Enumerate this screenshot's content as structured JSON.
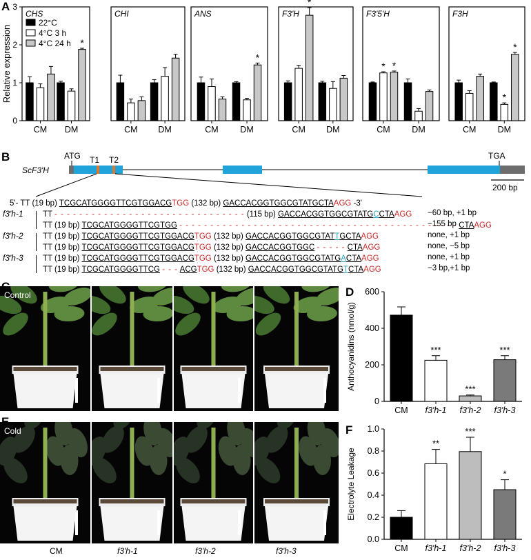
{
  "panel_a": {
    "letter": "A",
    "ylabel": "Relative expression",
    "legend": [
      "22°C",
      "4°C 3 h",
      "4°C 24 h"
    ],
    "colors": {
      "c22": "#000000",
      "c3": "#ffffff",
      "c24": "#c8c8c8"
    },
    "genes": [
      {
        "name": "CHS"
      },
      {
        "name": "CHI"
      },
      {
        "name": "ANS"
      },
      {
        "name": "F3'H"
      },
      {
        "name": "F3'5'H"
      },
      {
        "name": "F3H"
      }
    ]
  },
  "chart_data": [
    {
      "type": "bar",
      "title": "CHS",
      "categories": [
        "CM",
        "DM"
      ],
      "ylabel": "Relative expression",
      "ylim": [
        0,
        3
      ],
      "yticks": [
        0,
        1,
        2,
        3
      ],
      "series": [
        {
          "name": "22°C",
          "values": [
            1.0,
            1.0
          ],
          "err": [
            0.16,
            0.04
          ]
        },
        {
          "name": "4°C 3 h",
          "values": [
            0.87,
            0.78
          ],
          "err": [
            0.1,
            0.06
          ]
        },
        {
          "name": "4°C 24 h",
          "values": [
            1.23,
            1.88
          ],
          "err": [
            0.2,
            0.03
          ]
        }
      ],
      "annotations": [
        {
          "category": "DM",
          "series": "4°C 24 h",
          "text": "*"
        }
      ]
    },
    {
      "type": "bar",
      "title": "CHI",
      "categories": [
        "CM",
        "DM"
      ],
      "ylim": [
        0,
        3
      ],
      "series": [
        {
          "name": "22°C",
          "values": [
            1.0,
            1.0
          ],
          "err": [
            0.2,
            0.08
          ]
        },
        {
          "name": "4°C 3 h",
          "values": [
            0.47,
            1.17
          ],
          "err": [
            0.1,
            0.23
          ]
        },
        {
          "name": "4°C 24 h",
          "values": [
            0.53,
            1.65
          ],
          "err": [
            0.1,
            0.1
          ]
        }
      ],
      "annotations": []
    },
    {
      "type": "bar",
      "title": "ANS",
      "categories": [
        "CM",
        "DM"
      ],
      "ylim": [
        0,
        3
      ],
      "series": [
        {
          "name": "22°C",
          "values": [
            1.0,
            1.0
          ],
          "err": [
            0.15,
            0.03
          ]
        },
        {
          "name": "4°C 3 h",
          "values": [
            0.9,
            0.55
          ],
          "err": [
            0.2,
            0.04
          ]
        },
        {
          "name": "4°C 24 h",
          "values": [
            0.57,
            1.47
          ],
          "err": [
            0.06,
            0.05
          ]
        }
      ],
      "annotations": [
        {
          "category": "DM",
          "series": "4°C 24 h",
          "text": "*"
        }
      ]
    },
    {
      "type": "bar",
      "title": "F3'H",
      "categories": [
        "CM",
        "DM"
      ],
      "ylim": [
        0,
        3
      ],
      "series": [
        {
          "name": "22°C",
          "values": [
            1.0,
            1.0
          ],
          "err": [
            0.05,
            0.04
          ]
        },
        {
          "name": "4°C 3 h",
          "values": [
            1.38,
            0.85
          ],
          "err": [
            0.08,
            0.18
          ]
        },
        {
          "name": "4°C 24 h",
          "values": [
            2.78,
            1.12
          ],
          "err": [
            0.2,
            0.07
          ]
        }
      ],
      "annotations": [
        {
          "category": "CM",
          "series": "4°C 24 h",
          "text": "*"
        }
      ]
    },
    {
      "type": "bar",
      "title": "F3'5'H",
      "categories": [
        "CM",
        "DM"
      ],
      "ylim": [
        0,
        3
      ],
      "series": [
        {
          "name": "22°C",
          "values": [
            1.0,
            1.0
          ],
          "err": [
            0.02,
            0.1
          ]
        },
        {
          "name": "4°C 3 h",
          "values": [
            1.26,
            0.25
          ],
          "err": [
            0.03,
            0.07
          ]
        },
        {
          "name": "4°C 24 h",
          "values": [
            1.28,
            0.77
          ],
          "err": [
            0.03,
            0.04
          ]
        }
      ],
      "annotations": [
        {
          "category": "CM",
          "series": "4°C 3 h",
          "text": "*"
        },
        {
          "category": "CM",
          "series": "4°C 24 h",
          "text": "*"
        }
      ]
    },
    {
      "type": "bar",
      "title": "F3H",
      "categories": [
        "CM",
        "DM"
      ],
      "ylim": [
        0,
        3
      ],
      "series": [
        {
          "name": "22°C",
          "values": [
            1.0,
            1.0
          ],
          "err": [
            0.07,
            0.02
          ]
        },
        {
          "name": "4°C 3 h",
          "values": [
            0.72,
            0.43
          ],
          "err": [
            0.07,
            0.04
          ]
        },
        {
          "name": "4°C 24 h",
          "values": [
            1.17,
            1.75
          ],
          "err": [
            0.06,
            0.05
          ]
        }
      ],
      "annotations": [
        {
          "category": "DM",
          "series": "4°C 3 h",
          "text": "*"
        },
        {
          "category": "DM",
          "series": "4°C 24 h",
          "text": "*"
        }
      ]
    },
    {
      "type": "bar",
      "title": "",
      "categories": [
        "CM",
        "f3'h-1",
        "f3'h-2",
        "f3'h-3"
      ],
      "ylabel": "Anthocyanidins (nmol/g)",
      "ylim": [
        0,
        600
      ],
      "yticks": [
        0,
        200,
        400,
        600
      ],
      "values": [
        472,
        225,
        30,
        228
      ],
      "err": [
        45,
        25,
        5,
        22
      ],
      "colors": [
        "#000000",
        "#ffffff",
        "#bdbdbd",
        "#7a7a7a"
      ],
      "annotations": [
        "",
        "***",
        "***",
        "***"
      ]
    },
    {
      "type": "bar",
      "title": "",
      "categories": [
        "CM",
        "f3'h-1",
        "f3'h-2",
        "f3'h-3"
      ],
      "ylabel": "Electrolyte Leakage",
      "ylim": [
        0,
        1.0
      ],
      "yticks": [
        0,
        0.2,
        0.4,
        0.6,
        0.8,
        1.0
      ],
      "values": [
        0.2,
        0.685,
        0.795,
        0.45
      ],
      "err": [
        0.06,
        0.13,
        0.13,
        0.09
      ],
      "colors": [
        "#000000",
        "#ffffff",
        "#bdbdbd",
        "#7a7a7a"
      ],
      "annotations": [
        "",
        "**",
        "***",
        "*"
      ]
    }
  ],
  "panel_b": {
    "letter": "B",
    "gene_label": "ScF3'H",
    "atg": "ATG",
    "t1": "T1",
    "t2": "T2",
    "tga": "TGA",
    "scale": "200 bp",
    "wt": {
      "prefix": "5'- TT (19 bp)",
      "seq1": "TCGCATGGGGTTCGTGGACG",
      "pam1": "TGG",
      "mid": "(132 bp)",
      "seq2": "GACCACGGTGGCGTATGCTA",
      "pam2": "AGG",
      "suffix": "-3'"
    },
    "lines": [
      {
        "group": "f3'h-1",
        "parts": [
          "TT",
          "- - - - - - - - - - - - - - - - - - - - - - - - - - - - - - -",
          "(115 bp)",
          "GACCACGGTGGCGTATG",
          "C",
          "CTA",
          "AGG"
        ],
        "note": "−60 bp, +1 bp"
      },
      {
        "group": "",
        "parts": [
          "TT (19 bp)",
          "TCGCATGGGGTTCGTGG",
          "- - - - - - - - - - - - - - - - - - - - - - - - - - - - - - - - - - - - - - - - - - - - -",
          "CTA",
          "AGG"
        ],
        "note": "−155 bp"
      },
      {
        "group": "f3'h-2",
        "parts": [
          "TT (19 bp)",
          "TCGCATGGGGTTCGTGGACG",
          "TGG",
          "(132 bp)",
          "GACCACGGTGGCGTAT",
          "T",
          "GCTA",
          "AGG"
        ],
        "note": "none, +1 bp"
      },
      {
        "group": "",
        "parts": [
          "TT (19 bp)",
          "TCGCATGGGGTTCGTGGACG",
          "TGG",
          "(132 bp)",
          "GACCACGGTGGC",
          "- - - - -",
          "CTA",
          "AGG"
        ],
        "note": "none, −5 bp"
      },
      {
        "group": "f3'h-3",
        "parts": [
          "TT (19 bp)",
          "TCGCATGGGGTTCGTGGACG",
          "TGG",
          "(132 bp)",
          "GACCACGGTGGCGTATG",
          "A",
          "CTA",
          "AGG"
        ],
        "note": "none, +1 bp"
      },
      {
        "group": "",
        "parts": [
          "TT (19 bp)",
          "TCGCATGGGGTTCG",
          "- - -",
          "ACG",
          "TGG",
          "(132 bp)",
          "GACCACGGTGGCGTATG",
          "T",
          "CTA",
          "AGG"
        ],
        "note": "−3 bp,+1 bp"
      }
    ]
  },
  "panel_c": {
    "letter": "C",
    "label": "Control"
  },
  "panel_d": {
    "letter": "D"
  },
  "panel_e": {
    "letter": "E",
    "label": "Cold",
    "x_labels": [
      "CM",
      "f3'h-1",
      "f3'h-2",
      "f3'h-3"
    ]
  },
  "panel_f": {
    "letter": "F"
  }
}
